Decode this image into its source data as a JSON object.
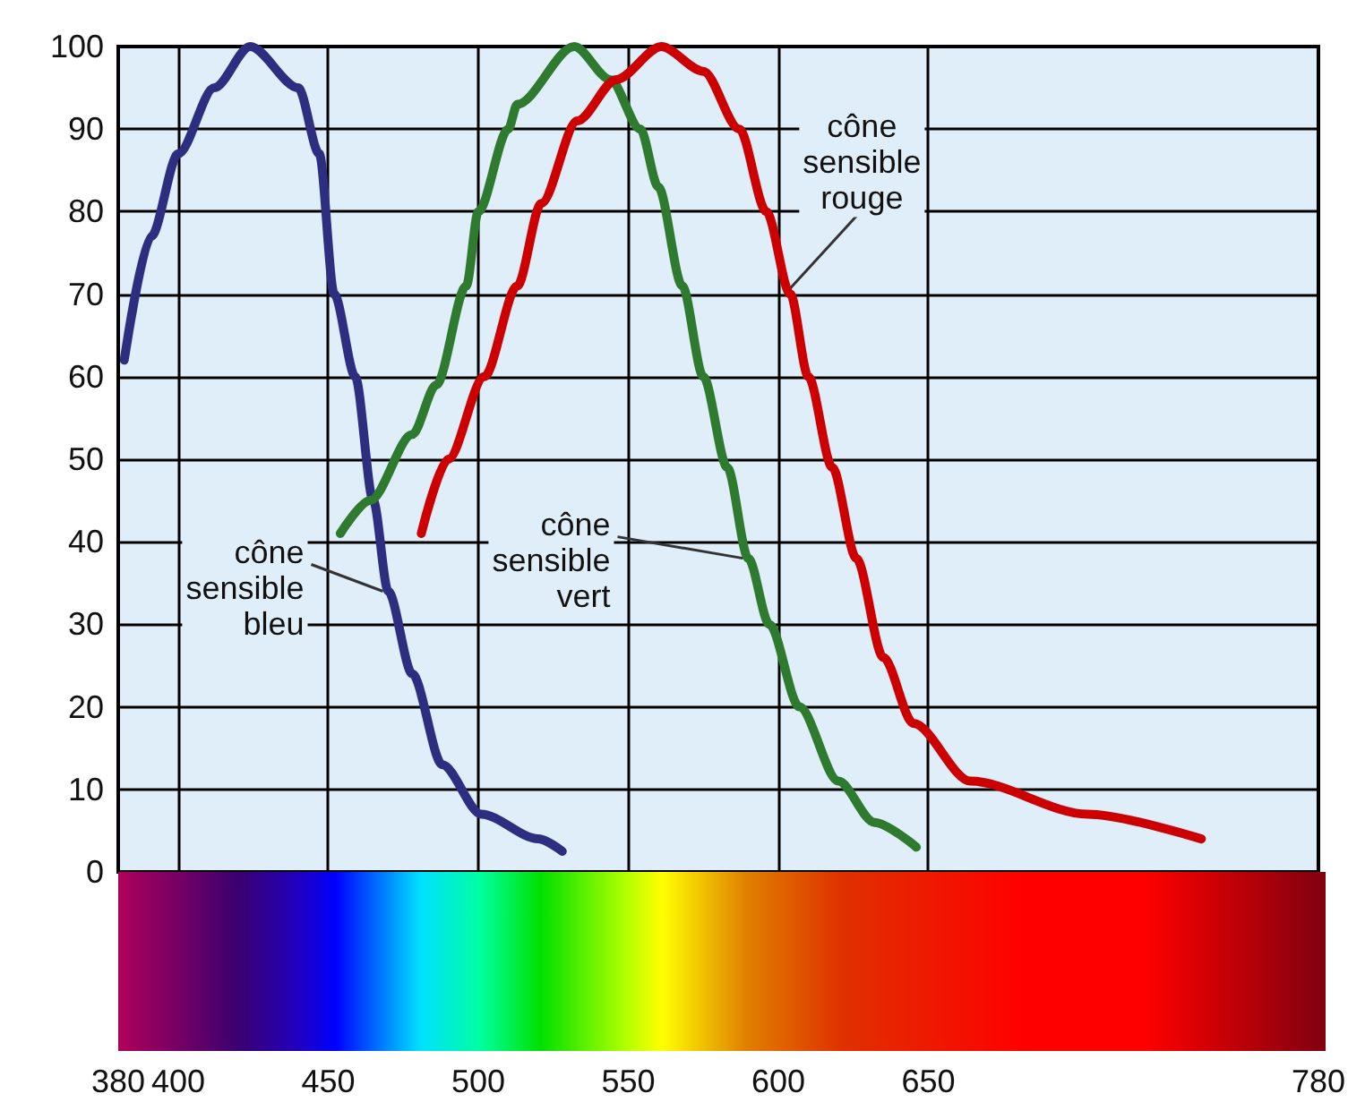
{
  "chart_data": {
    "type": "line",
    "xlim": [
      380,
      780
    ],
    "xticks": [
      380,
      400,
      450,
      500,
      550,
      600,
      650,
      780
    ],
    "ylim": [
      0,
      100
    ],
    "yticks": [
      0,
      10,
      20,
      30,
      40,
      50,
      60,
      70,
      80,
      90,
      100
    ],
    "grid": true,
    "marker": "none",
    "line_style": "solid",
    "series": [
      {
        "color": "#2e2e80",
        "x": [
          382,
          391,
          400,
          412,
          424,
          440,
          447,
          452,
          459,
          465,
          470,
          478,
          488,
          501,
          520,
          528
        ],
        "values": [
          62,
          77,
          87,
          95,
          100,
          95,
          87,
          70,
          60,
          45,
          34,
          24,
          13,
          7,
          4,
          2.5
        ]
      },
      {
        "color": "#2e7a2e",
        "x": [
          454,
          464,
          478,
          486,
          496,
          500,
          510,
          513,
          532,
          544,
          554,
          560,
          568,
          575,
          583,
          590,
          597,
          607,
          620,
          632,
          646
        ],
        "values": [
          41,
          45,
          53,
          59,
          71,
          80,
          90,
          93,
          100,
          96,
          90,
          83,
          71,
          60,
          49,
          38,
          30,
          20,
          11,
          6,
          3
        ]
      },
      {
        "color": "#cc0000",
        "x": [
          481,
          490,
          502,
          513,
          521,
          533,
          546,
          561,
          575,
          587,
          596,
          604,
          610,
          618,
          626,
          635,
          645,
          664,
          703,
          741
        ],
        "values": [
          41,
          50,
          60,
          71,
          81,
          91,
          96,
          100,
          97,
          90,
          80,
          70,
          60,
          49,
          38,
          26,
          18,
          11,
          7,
          4
        ]
      }
    ],
    "annotations": [
      {
        "text": "cône\nsensible\nbleu",
        "x": 470,
        "y": 34
      },
      {
        "text": "cône\nsensible\nvert",
        "x": 590,
        "y": 38
      },
      {
        "text": "cône\nsensible\nrouge",
        "x": 604,
        "y": 70
      }
    ]
  }
}
